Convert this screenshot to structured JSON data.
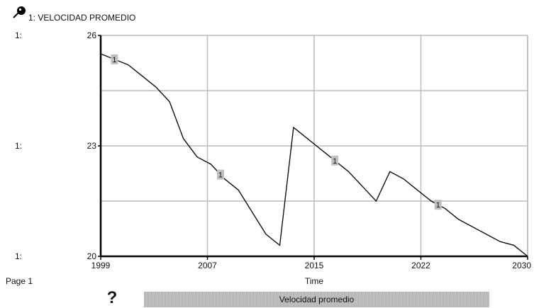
{
  "header": {
    "icon": "pin-icon",
    "title": "1: VELOCIDAD PROMEDIO"
  },
  "footer": {
    "page_label": "Page 1",
    "help_label": "?",
    "scenario_label": "Velocidad promedio"
  },
  "colors": {
    "line": "#111111",
    "grid": "#bbbbbb",
    "marker": "#c0c0c0",
    "scenario_bar": "#bdbdbd"
  },
  "chart_data": {
    "type": "line",
    "xlabel": "Time",
    "x_ticks": [
      "1999",
      "2007",
      "2015",
      "2022",
      "2030"
    ],
    "xlim": [
      1999,
      2030
    ],
    "y_ticks": [
      "26",
      "23",
      "20"
    ],
    "y_axis_prefix": "1:",
    "ylim": [
      20,
      26
    ],
    "grid": true,
    "series": [
      {
        "marker_label": "1",
        "x": [
          1999,
          2001,
          2002,
          2003,
          2004,
          2005,
          2006,
          2007,
          2008,
          2009,
          2010,
          2011,
          2012,
          2013,
          2014,
          2015,
          2016,
          2017,
          2018,
          2019,
          2020,
          2021,
          2022,
          2023,
          2024,
          2025,
          2026,
          2027,
          2028,
          2029,
          2030
        ],
        "y": [
          25.5,
          25.2,
          24.9,
          24.6,
          24.2,
          23.2,
          22.7,
          22.5,
          22.1,
          21.8,
          21.2,
          20.6,
          20.3,
          23.5,
          23.2,
          22.9,
          22.6,
          22.3,
          21.9,
          21.5,
          22.3,
          22.1,
          21.8,
          21.5,
          21.3,
          21.0,
          20.8,
          20.6,
          20.4,
          20.3,
          20.0
        ],
        "marker_x": [
          2000,
          2007.7,
          2016,
          2023.5
        ]
      }
    ]
  }
}
